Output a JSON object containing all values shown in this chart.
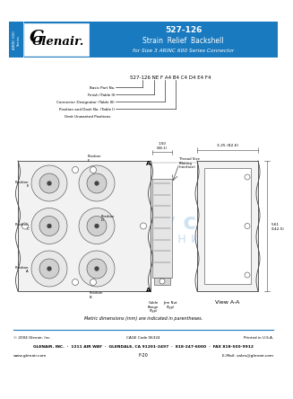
{
  "bg_color": "#ffffff",
  "header_bg": "#1a7abf",
  "header_text_color": "#ffffff",
  "header_title": "527-126",
  "header_subtitle": "Strain  Relief  Backshell",
  "header_sub2": "for Size 3 ARINC 600 Series Connector",
  "logo_text": "Glenair.",
  "left_tab_text": "ARINC 600\nSeries",
  "part_num_label": "527-126 NE F A4 B4 C4 D4 E4 F4",
  "fields": [
    "Basic Part No.",
    "Finish (Table II)",
    "Connector Designator (Table III)",
    "Position and Dash No. (Table I)"
  ],
  "field5": "   Omit Unwanted Positions",
  "footer_line1": "GLENAIR, INC.  ·  1211 AIR WAY  ·  GLENDALE, CA 91201-2497  ·  818-247-6000  ·  FAX 818-500-9912",
  "footer_line2": "www.glenair.com",
  "footer_center": "F-20",
  "footer_right": "E-Mail: sales@glenair.com",
  "footer_copy": "© 2004 Glenair, Inc.",
  "footer_cage": "CAGE Code 06324",
  "footer_printed": "Printed in U.S.A.",
  "metric_note": "Metric dimensions (mm) are indicated in parentheses.",
  "drawing_color": "#444444",
  "watermark_color": "#b8d4ea",
  "dim_1_50": "1.50\n(38.1)",
  "dim_3_25": "3.25 (82.6)",
  "dim_5_61": "5.61\n(142.5)",
  "thread_label": "Thread Size\n(Mating\nInterface)",
  "cable_label": "Cable\nRange\n(Typ)",
  "jamnut_label": "Jam Nut\n(Typ)",
  "view_aa": "View A-A",
  "pos_labels": [
    "Position\nE",
    "Position\nF",
    "Position\nC",
    "Position\nD",
    "Position\nA",
    "Position\nB"
  ]
}
